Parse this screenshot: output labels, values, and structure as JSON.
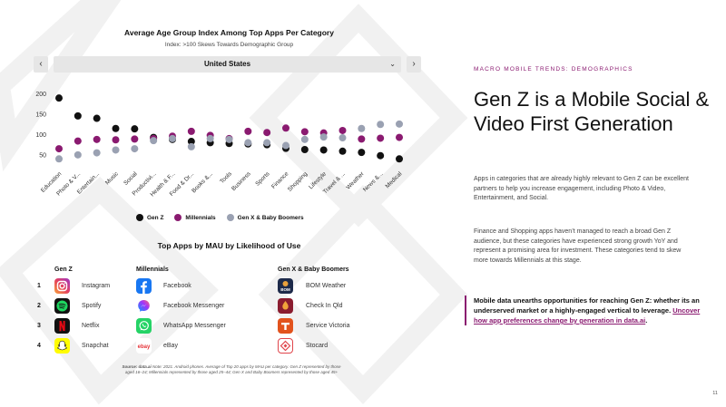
{
  "chart_header": {
    "title": "Average Age Group Index Among Top Apps Per Category",
    "subtitle": "Index: >100 Skews Towards Demographic Group"
  },
  "country_selector": {
    "value": "United States",
    "prev_icon": "chevron-left-icon",
    "next_icon": "chevron-right-icon"
  },
  "chart_data": {
    "type": "scatter",
    "title": "Average Age Group Index Among Top Apps Per Category",
    "subtitle": "Index: >100 Skews Towards Demographic Group",
    "categories": [
      "Education",
      "Photo & V...",
      "Entertain...",
      "Music",
      "Social",
      "Productivi...",
      "Health & F...",
      "Food & Dr...",
      "Books &...",
      "Tools",
      "Business",
      "Sports",
      "Finance",
      "Shopping",
      "Lifestyle",
      "Travel & ...",
      "Weather",
      "News &...",
      "Medical"
    ],
    "yticks": [
      50,
      100,
      150,
      200
    ],
    "ylim": [
      25,
      215
    ],
    "series": [
      {
        "name": "Gen Z",
        "color": "#111111",
        "values": [
          190,
          146,
          140,
          115,
          114,
          93,
          88,
          83,
          80,
          78,
          77,
          75,
          66,
          63,
          62,
          59,
          56,
          48,
          40
        ]
      },
      {
        "name": "Millennials",
        "color": "#8a1a70",
        "values": [
          65,
          84,
          88,
          87,
          89,
          90,
          96,
          108,
          98,
          90,
          108,
          105,
          116,
          107,
          104,
          110,
          89,
          91,
          93
        ]
      },
      {
        "name": "Gen X & Baby Boomers",
        "color": "#9aa1b2",
        "values": [
          40,
          50,
          55,
          62,
          65,
          85,
          90,
          70,
          90,
          88,
          80,
          80,
          73,
          88,
          94,
          92,
          115,
          125,
          126
        ]
      }
    ]
  },
  "legend": {
    "gen_z": {
      "label": "Gen Z",
      "color": "#111111"
    },
    "millennials": {
      "label": "Millennials",
      "color": "#8a1a70"
    },
    "genx": {
      "label": "Gen X & Baby Boomers",
      "color": "#9aa1b2"
    }
  },
  "apps_table": {
    "title": "Top Apps by MAU by Likelihood of Use",
    "headers": {
      "gen_z": "Gen Z",
      "millennials": "Millennials",
      "genx": "Gen X & Baby Boomers"
    },
    "rows": [
      {
        "rank": "1",
        "gen_z": {
          "name": "Instagram",
          "icon": "instagram-icon"
        },
        "millennials": {
          "name": "Facebook",
          "icon": "facebook-icon"
        },
        "genx": {
          "name": "BOM Weather",
          "icon": "bom-weather-icon"
        }
      },
      {
        "rank": "2",
        "gen_z": {
          "name": "Spotify",
          "icon": "spotify-icon"
        },
        "millennials": {
          "name": "Facebook Messenger",
          "icon": "messenger-icon"
        },
        "genx": {
          "name": "Check In Qld",
          "icon": "check-in-qld-icon"
        }
      },
      {
        "rank": "3",
        "gen_z": {
          "name": "Netflix",
          "icon": "netflix-icon"
        },
        "millennials": {
          "name": "WhatsApp Messenger",
          "icon": "whatsapp-icon"
        },
        "genx": {
          "name": "Service Victoria",
          "icon": "service-victoria-icon"
        }
      },
      {
        "rank": "4",
        "gen_z": {
          "name": "Snapchat",
          "icon": "snapchat-icon"
        },
        "millennials": {
          "name": "eBay",
          "icon": "ebay-icon"
        },
        "genx": {
          "name": "Stocard",
          "icon": "stocard-icon"
        }
      }
    ],
    "bom_logo_text": "BOM",
    "ebay_logo_text": "ebay"
  },
  "source_note": {
    "label": "Source: data.ai",
    "text": " Note: 2021. Android phones. Average of Top 20 apps by MAU per category. Gen Z represented by those aged 16–24; Millennials represented by those aged 25–44; Gen X and Baby Boomers represented by those aged 45+"
  },
  "right_panel": {
    "eyebrow": "MACRO MOBILE TRENDS: DEMOGRAPHICS",
    "headline": "Gen Z is a Mobile Social & Video First Generation",
    "paragraph1": "Apps in categories that are already highly relevant to Gen Z can be excellent partners to help you increase engagement, including Photo & Video, Entertainment, and Social.",
    "paragraph2": "Finance and Shopping apps haven’t managed to reach a broad Gen Z audience, but these categories have experienced strong growth YoY and represent a promising area for investment. These categories tend to skew more towards Millennials at this stage.",
    "callout_text": "Mobile data unearths opportunities for reaching Gen Z: whether its an underserved market or a highly-engaged vertical to leverage. ",
    "callout_link": "Uncover how app preferences change by generation in data.ai",
    "callout_end": "."
  },
  "page_number": "11",
  "colors": {
    "accent": "#8a1a70",
    "gray": "#9aa1b2",
    "dark": "#111111"
  }
}
